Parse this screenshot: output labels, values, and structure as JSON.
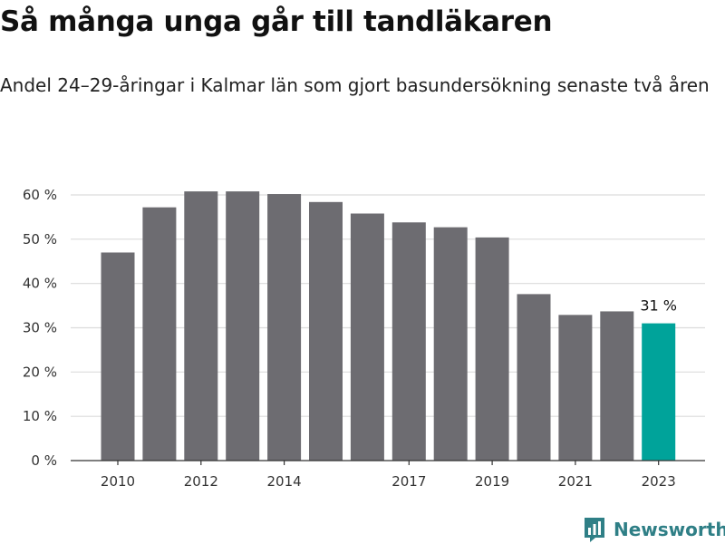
{
  "title": "Så många unga går till tandläkaren",
  "subtitle": "Andel 24–29-åringar i Kalmar län som gjort basundersökning senaste två åren",
  "brand": {
    "name": "Newsworthy",
    "icon": "newsworthy-logo-icon",
    "color": "#2f7f86"
  },
  "chart_data": {
    "type": "bar",
    "categories": [
      "2010",
      "2011",
      "2012",
      "2013",
      "2014",
      "2015",
      "2016",
      "2017",
      "2018",
      "2019",
      "2020",
      "2021",
      "2022",
      "2023"
    ],
    "values": [
      47,
      57.2,
      60.8,
      60.8,
      60.2,
      58.4,
      55.8,
      53.8,
      52.7,
      50.4,
      37.6,
      32.9,
      33.7,
      31
    ],
    "ylim": [
      0,
      60
    ],
    "yticks": [
      "0 %",
      "10 %",
      "20 %",
      "30 %",
      "40 %",
      "50 %",
      "60 %"
    ],
    "xtick_labels": [
      "2010",
      "2012",
      "2014",
      "2017",
      "2019",
      "2021",
      "2023"
    ],
    "data_labels": [
      {
        "category": "2023",
        "text": "31 %"
      }
    ],
    "colors": {
      "bar": "#6d6c71",
      "highlight": "#00a39a",
      "grid": "#dcdcdc"
    },
    "grid": true,
    "xlabel": "",
    "ylabel": ""
  }
}
